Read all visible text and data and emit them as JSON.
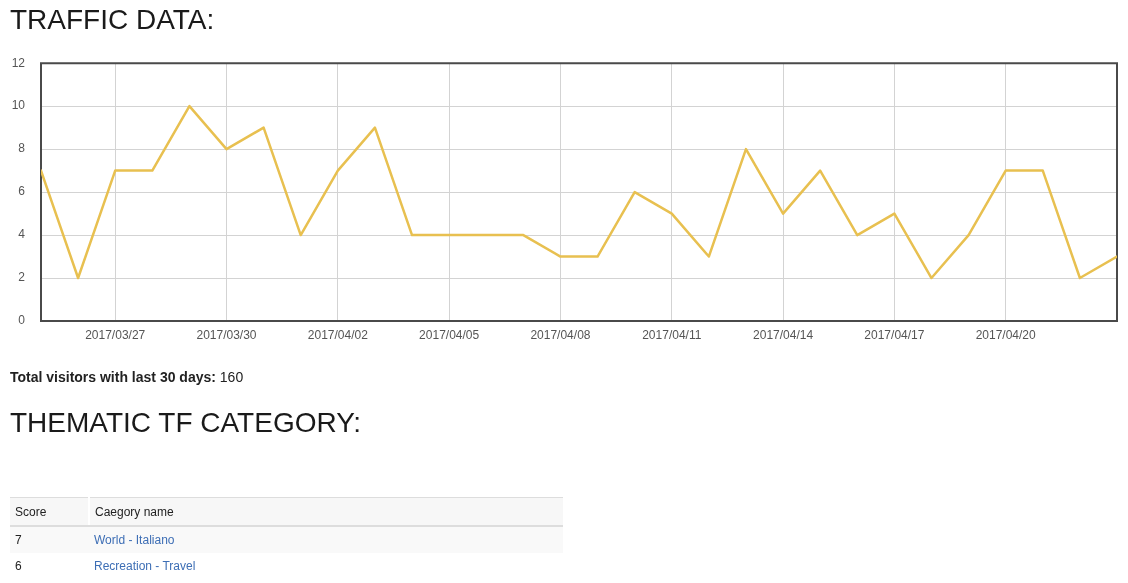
{
  "chart_data": [
    {
      "type": "line",
      "title": "TRAFFIC DATA:",
      "x": [
        "2017-03-25",
        "2017-03-26",
        "2017-03-27",
        "2017-03-28",
        "2017-03-29",
        "2017-03-30",
        "2017-03-31",
        "2017-04-01",
        "2017-04-02",
        "2017-04-03",
        "2017-04-04",
        "2017-04-05",
        "2017-04-06",
        "2017-04-07",
        "2017-04-08",
        "2017-04-09",
        "2017-04-10",
        "2017-04-11",
        "2017-04-12",
        "2017-04-13",
        "2017-04-14",
        "2017-04-15",
        "2017-04-16",
        "2017-04-17",
        "2017-04-18",
        "2017-04-19",
        "2017-04-20",
        "2017-04-21",
        "2017-04-22",
        "2017-04-23"
      ],
      "values": [
        7,
        2,
        7,
        7,
        10,
        8,
        9,
        4,
        7,
        9,
        4,
        4,
        4,
        4,
        3,
        3,
        6,
        5,
        3,
        8,
        5,
        7,
        4,
        5,
        2,
        4,
        7,
        7,
        2,
        3
      ],
      "color": "#e8c050",
      "xlim": [
        "2017-03-25",
        "2017-04-23"
      ],
      "xticks": [
        {
          "value": "2017-03-27",
          "label": "2017/03/27"
        },
        {
          "value": "2017-03-30",
          "label": "2017/03/30"
        },
        {
          "value": "2017-04-02",
          "label": "2017/04/02"
        },
        {
          "value": "2017-04-05",
          "label": "2017/04/05"
        },
        {
          "value": "2017-04-08",
          "label": "2017/04/08"
        },
        {
          "value": "2017-04-11",
          "label": "2017/04/11"
        },
        {
          "value": "2017-04-14",
          "label": "2017/04/14"
        },
        {
          "value": "2017-04-17",
          "label": "2017/04/17"
        },
        {
          "value": "2017-04-20",
          "label": "2017/04/20"
        }
      ],
      "ylim": [
        0,
        12
      ],
      "yticks": [
        0,
        2,
        4,
        6,
        8,
        10,
        12
      ],
      "grid": true,
      "marker": "none",
      "line_style": "solid",
      "annotations": [
        "Total visitors with last 30 days: 160"
      ]
    },
    {
      "type": "other",
      "title": "THEMATIC TF CATEGORY:",
      "annotations": [
        "Score",
        "Caegory name",
        "7",
        "World - Italiano",
        "6",
        "Recreation - Travel"
      ]
    }
  ]
}
